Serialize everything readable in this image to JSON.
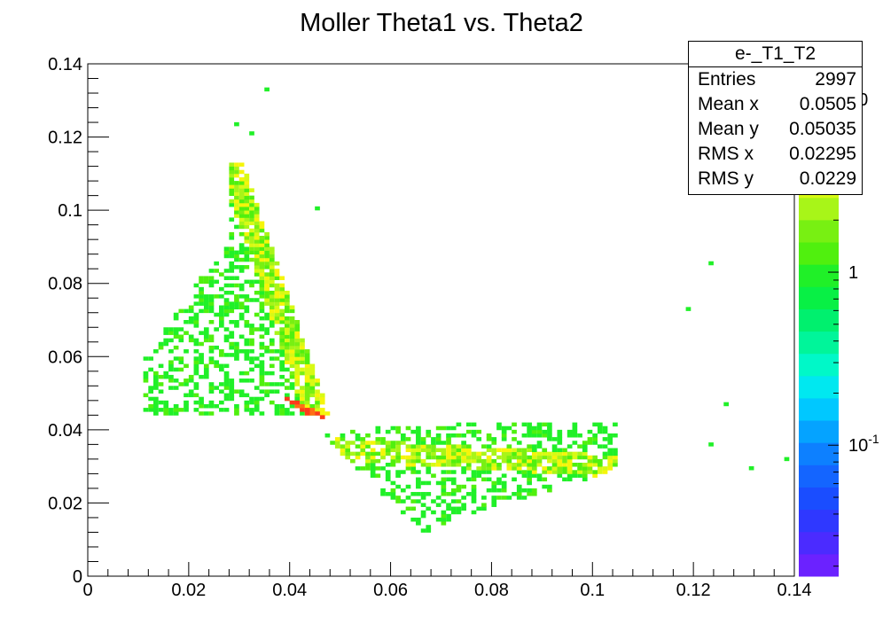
{
  "chart_data": {
    "type": "heatmap",
    "title": "Moller Theta1 vs. Theta2",
    "xlim": [
      0,
      0.14
    ],
    "ylim": [
      0,
      0.14
    ],
    "x_ticks": [
      "0",
      "0.02",
      "0.04",
      "0.06",
      "0.08",
      "0.1",
      "0.12",
      "0.14"
    ],
    "y_ticks": [
      "0",
      "0.02",
      "0.04",
      "0.06",
      "0.08",
      "0.1",
      "0.12",
      "0.14"
    ],
    "z_scale": "log",
    "z_ticks": [
      "10^-1",
      "1",
      "10"
    ],
    "bin_width": 0.001,
    "regions": [
      {
        "description": "upper lobe",
        "x_range": [
          0.011,
          0.04
        ],
        "y_range": [
          0.045,
          0.113
        ],
        "intensity": "low"
      },
      {
        "description": "ridge",
        "x_range": [
          0.027,
          0.046
        ],
        "y_range": [
          0.04,
          0.085
        ],
        "intensity": "high"
      },
      {
        "description": "lower lobe",
        "x_range": [
          0.045,
          0.105
        ],
        "y_range": [
          0.01,
          0.042
        ],
        "intensity": "low"
      }
    ],
    "outliers": [
      [
        0.0355,
        0.133
      ],
      [
        0.0295,
        0.1235
      ],
      [
        0.0325,
        0.121
      ],
      [
        0.0455,
        0.1005
      ],
      [
        0.1235,
        0.0855
      ],
      [
        0.119,
        0.073
      ],
      [
        0.1265,
        0.047
      ],
      [
        0.1235,
        0.036
      ],
      [
        0.1315,
        0.0295
      ],
      [
        0.1385,
        0.032
      ]
    ]
  },
  "palette": [
    "#6b22ff",
    "#4b2bff",
    "#2f38ff",
    "#1a4dff",
    "#1465ff",
    "#0d80ff",
    "#05a3ff",
    "#00c8ff",
    "#00e8f0",
    "#00f8c8",
    "#00f59a",
    "#00f06e",
    "#08f045",
    "#20f028",
    "#50f00e",
    "#78f012",
    "#a8f518",
    "#d8fa14",
    "#f5f50a",
    "#ffd70a",
    "#ffa314",
    "#ff6e14",
    "#ff3a1a"
  ],
  "stats_box": {
    "title": "e-_T1_T2",
    "rows": [
      {
        "label": "Entries",
        "value": "2997"
      },
      {
        "label": "Mean x",
        "value": "0.0505"
      },
      {
        "label": "Mean y",
        "value": "0.05035"
      },
      {
        "label": "RMS x",
        "value": "0.02295"
      },
      {
        "label": "RMS y",
        "value": "0.0229"
      }
    ]
  }
}
